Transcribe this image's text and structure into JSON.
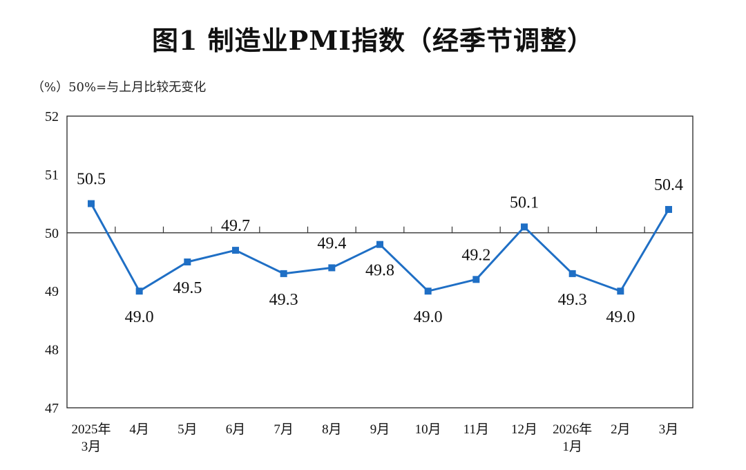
{
  "page": {
    "title": "图1  制造业PMI指数（经季节调整）",
    "unit_note": "（%）50%=与上月比较无变化"
  },
  "chart_data": {
    "type": "line",
    "title": "图1  制造业PMI指数（经季节调整）",
    "xlabel": "",
    "ylabel": "（%）50%=与上月比较无变化",
    "ylim": [
      47,
      52
    ],
    "yticks": [
      47,
      48,
      49,
      50,
      51,
      52
    ],
    "reference_line": 50,
    "grid": false,
    "line_color": "#1f6fc5",
    "categories": [
      [
        "2025年",
        "3月"
      ],
      [
        "4月"
      ],
      [
        "5月"
      ],
      [
        "6月"
      ],
      [
        "7月"
      ],
      [
        "8月"
      ],
      [
        "9月"
      ],
      [
        "10月"
      ],
      [
        "11月"
      ],
      [
        "12月"
      ],
      [
        "2026年",
        "1月"
      ],
      [
        "2月"
      ],
      [
        "3月"
      ]
    ],
    "series": [
      {
        "values": [
          50.5,
          49.0,
          49.5,
          49.7,
          49.3,
          49.4,
          49.8,
          49.0,
          49.2,
          50.1,
          49.3,
          49.0,
          50.4
        ],
        "labels": [
          "50.5",
          "49.0",
          "49.5",
          "49.7",
          "49.3",
          "49.4",
          "49.8",
          "49.0",
          "49.2",
          "50.1",
          "49.3",
          "49.0",
          "50.4"
        ],
        "label_position": [
          "above",
          "below",
          "below",
          "above",
          "below",
          "above",
          "below",
          "below",
          "above",
          "above",
          "below",
          "below",
          "above"
        ]
      }
    ]
  }
}
